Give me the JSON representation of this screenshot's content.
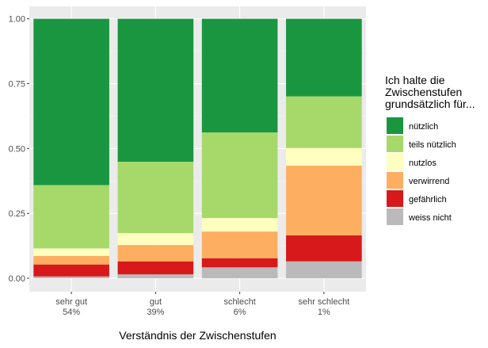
{
  "chart_data": {
    "type": "bar",
    "stacked": true,
    "xlabel": "Verständnis der Zwischenstufen",
    "ylabel": "",
    "ylim": [
      0,
      1
    ],
    "yticks": [
      "0.00",
      "0.25",
      "0.50",
      "0.75",
      "1.00"
    ],
    "categories": [
      [
        "sehr gut",
        "54%"
      ],
      [
        "gut",
        "39%"
      ],
      [
        "schlecht",
        "6%"
      ],
      [
        "sehr schlecht",
        "1%"
      ]
    ],
    "legend": {
      "title": [
        "Ich halte die",
        "Zwischenstufen",
        "grundsätzlich für..."
      ],
      "position": "right"
    },
    "series": [
      {
        "name": "nützlich",
        "color": "#1a9641",
        "values": [
          0.641,
          0.551,
          0.438,
          0.299
        ]
      },
      {
        "name": "teils nützlich",
        "color": "#a6d96a",
        "values": [
          0.244,
          0.275,
          0.33,
          0.199
        ]
      },
      {
        "name": "nutzlos",
        "color": "#ffffbf",
        "values": [
          0.029,
          0.046,
          0.052,
          0.068
        ]
      },
      {
        "name": "verwirrend",
        "color": "#fdae61",
        "values": [
          0.033,
          0.063,
          0.103,
          0.269
        ]
      },
      {
        "name": "gefährlich",
        "color": "#d7191c",
        "values": [
          0.046,
          0.05,
          0.035,
          0.1
        ]
      },
      {
        "name": "weiss nicht",
        "color": "#bababa",
        "values": [
          0.007,
          0.015,
          0.042,
          0.065
        ]
      }
    ]
  }
}
